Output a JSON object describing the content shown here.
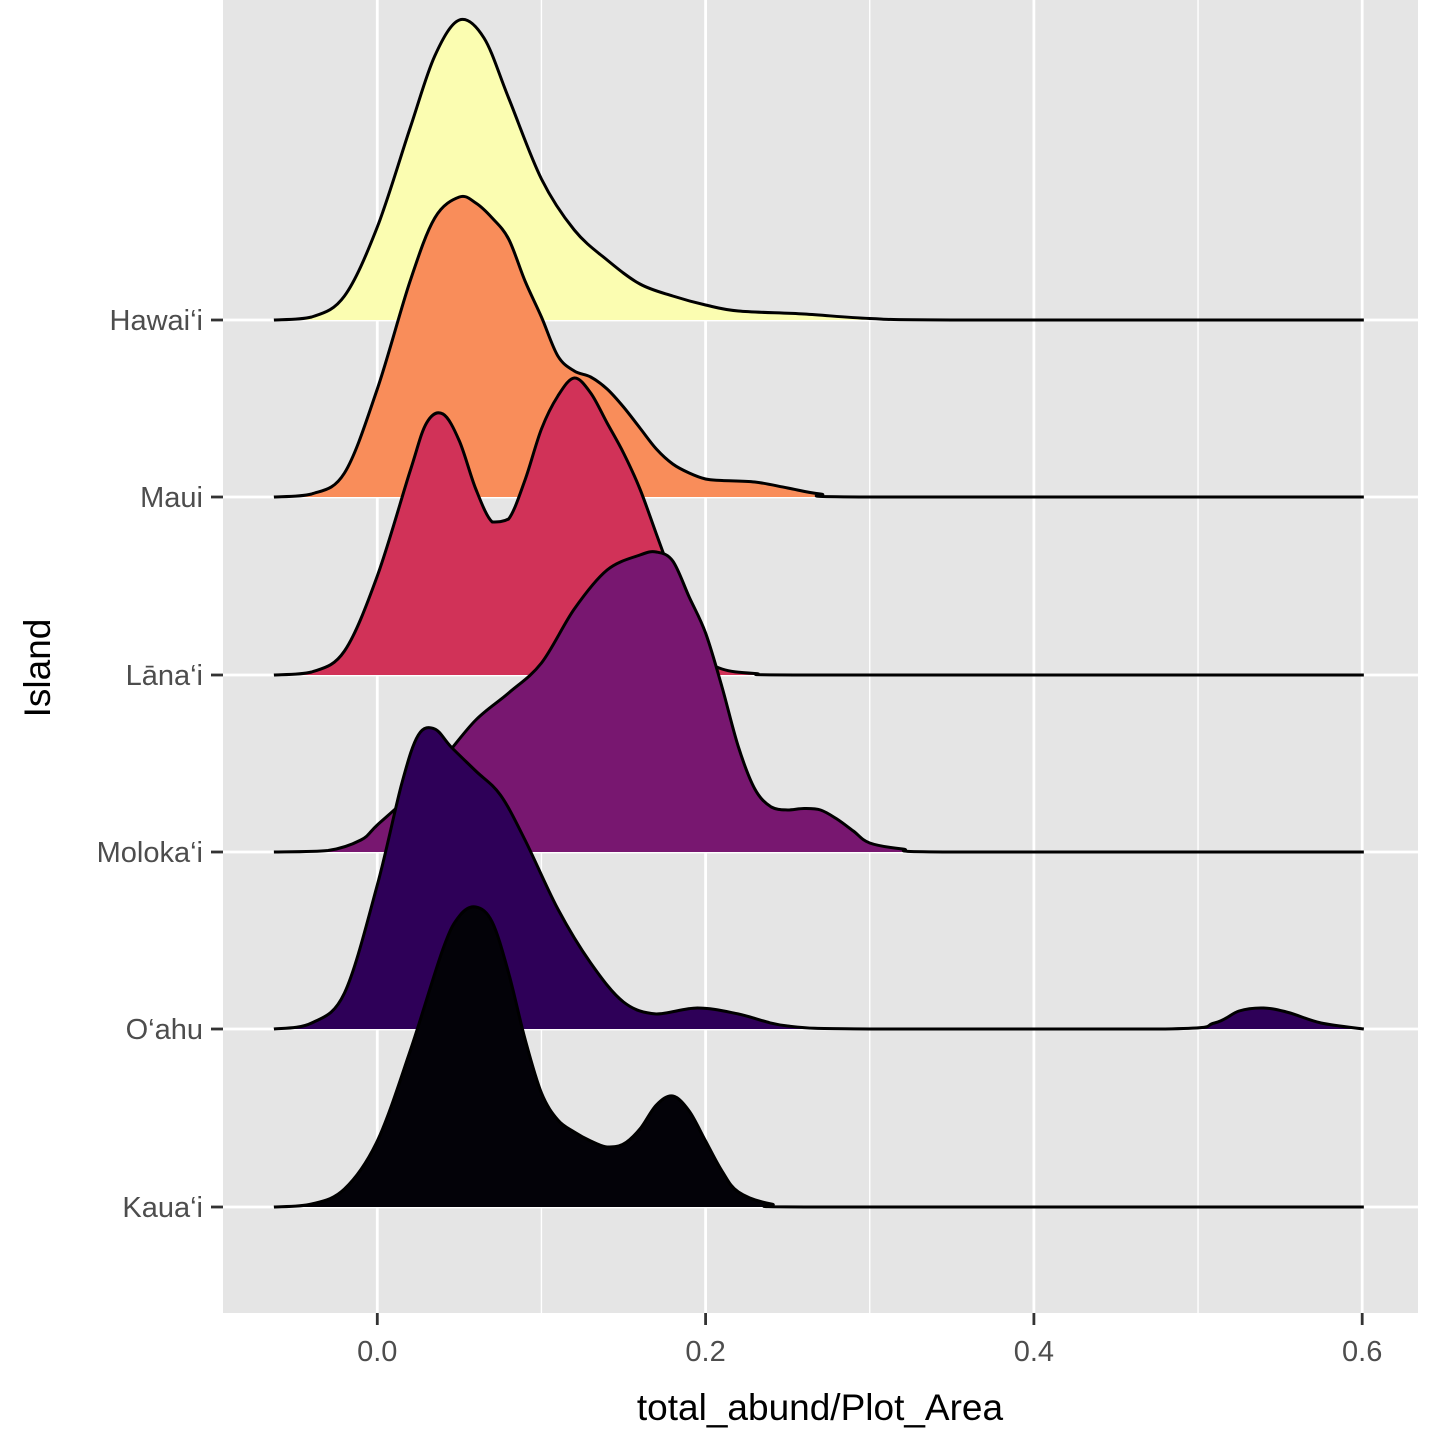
{
  "chart_data": {
    "type": "ridgeline",
    "xlabel": "total_abund/Plot_Area",
    "ylabel": "Island",
    "xlim": [
      -0.094,
      0.634
    ],
    "x_ticks": [
      0.0,
      0.2,
      0.4,
      0.6
    ],
    "x_tick_labels": [
      "0.0",
      "0.2",
      "0.4",
      "0.6"
    ],
    "x_range": [
      -0.063,
      0.601
    ],
    "grid": true,
    "background": "#e5e5e5",
    "series": [
      {
        "name": "Kaua‘i",
        "fill": "#030208",
        "points": [
          [
            -0.063,
            0
          ],
          [
            -0.04,
            0.01
          ],
          [
            -0.02,
            0.06
          ],
          [
            0.0,
            0.22
          ],
          [
            0.02,
            0.52
          ],
          [
            0.04,
            0.86
          ],
          [
            0.05,
            0.97
          ],
          [
            0.06,
            1.0
          ],
          [
            0.07,
            0.95
          ],
          [
            0.08,
            0.78
          ],
          [
            0.09,
            0.56
          ],
          [
            0.1,
            0.38
          ],
          [
            0.11,
            0.29
          ],
          [
            0.12,
            0.25
          ],
          [
            0.13,
            0.22
          ],
          [
            0.14,
            0.2
          ],
          [
            0.15,
            0.21
          ],
          [
            0.16,
            0.26
          ],
          [
            0.17,
            0.34
          ],
          [
            0.18,
            0.37
          ],
          [
            0.19,
            0.32
          ],
          [
            0.2,
            0.22
          ],
          [
            0.21,
            0.12
          ],
          [
            0.22,
            0.05
          ],
          [
            0.24,
            0.01
          ],
          [
            0.27,
            0
          ],
          [
            0.601,
            0
          ]
        ]
      },
      {
        "name": "O‘ahu",
        "fill": "#2e0058",
        "points": [
          [
            -0.063,
            0
          ],
          [
            -0.04,
            0.02
          ],
          [
            -0.02,
            0.12
          ],
          [
            0.0,
            0.48
          ],
          [
            0.015,
            0.82
          ],
          [
            0.025,
            0.98
          ],
          [
            0.035,
            1.0
          ],
          [
            0.045,
            0.94
          ],
          [
            0.06,
            0.86
          ],
          [
            0.075,
            0.78
          ],
          [
            0.09,
            0.63
          ],
          [
            0.11,
            0.4
          ],
          [
            0.13,
            0.22
          ],
          [
            0.15,
            0.09
          ],
          [
            0.17,
            0.05
          ],
          [
            0.195,
            0.07
          ],
          [
            0.22,
            0.05
          ],
          [
            0.25,
            0.01
          ],
          [
            0.3,
            0
          ],
          [
            0.48,
            0
          ],
          [
            0.51,
            0.02
          ],
          [
            0.525,
            0.06
          ],
          [
            0.54,
            0.07
          ],
          [
            0.555,
            0.055
          ],
          [
            0.575,
            0.02
          ],
          [
            0.601,
            0
          ]
        ]
      },
      {
        "name": "Moloka‘i",
        "fill": "#781770",
        "points": [
          [
            -0.063,
            0
          ],
          [
            -0.03,
            0.005
          ],
          [
            -0.01,
            0.04
          ],
          [
            0.0,
            0.09
          ],
          [
            0.02,
            0.19
          ],
          [
            0.04,
            0.31
          ],
          [
            0.06,
            0.44
          ],
          [
            0.08,
            0.53
          ],
          [
            0.1,
            0.63
          ],
          [
            0.12,
            0.81
          ],
          [
            0.14,
            0.94
          ],
          [
            0.16,
            0.99
          ],
          [
            0.17,
            1.0
          ],
          [
            0.18,
            0.97
          ],
          [
            0.19,
            0.85
          ],
          [
            0.2,
            0.73
          ],
          [
            0.21,
            0.55
          ],
          [
            0.22,
            0.35
          ],
          [
            0.23,
            0.21
          ],
          [
            0.24,
            0.15
          ],
          [
            0.25,
            0.14
          ],
          [
            0.26,
            0.145
          ],
          [
            0.27,
            0.14
          ],
          [
            0.28,
            0.11
          ],
          [
            0.29,
            0.07
          ],
          [
            0.3,
            0.03
          ],
          [
            0.32,
            0.01
          ],
          [
            0.35,
            0
          ],
          [
            0.601,
            0
          ]
        ]
      },
      {
        "name": "Lāna‘i",
        "fill": "#d13258",
        "points": [
          [
            -0.063,
            0
          ],
          [
            -0.04,
            0.01
          ],
          [
            -0.02,
            0.08
          ],
          [
            0.0,
            0.33
          ],
          [
            0.02,
            0.68
          ],
          [
            0.03,
            0.84
          ],
          [
            0.04,
            0.87
          ],
          [
            0.05,
            0.78
          ],
          [
            0.06,
            0.62
          ],
          [
            0.07,
            0.51
          ],
          [
            0.08,
            0.52
          ],
          [
            0.09,
            0.65
          ],
          [
            0.1,
            0.82
          ],
          [
            0.11,
            0.93
          ],
          [
            0.12,
            0.99
          ],
          [
            0.13,
            0.94
          ],
          [
            0.14,
            0.84
          ],
          [
            0.15,
            0.74
          ],
          [
            0.16,
            0.62
          ],
          [
            0.17,
            0.47
          ],
          [
            0.18,
            0.32
          ],
          [
            0.19,
            0.17
          ],
          [
            0.2,
            0.06
          ],
          [
            0.21,
            0.02
          ],
          [
            0.23,
            0.005
          ],
          [
            0.27,
            0
          ],
          [
            0.601,
            0
          ]
        ]
      },
      {
        "name": "Maui",
        "fill": "#f98d5a",
        "points": [
          [
            -0.063,
            0
          ],
          [
            -0.04,
            0.01
          ],
          [
            -0.02,
            0.08
          ],
          [
            0.0,
            0.36
          ],
          [
            0.02,
            0.72
          ],
          [
            0.035,
            0.93
          ],
          [
            0.05,
            1.0
          ],
          [
            0.06,
            0.98
          ],
          [
            0.07,
            0.93
          ],
          [
            0.08,
            0.86
          ],
          [
            0.09,
            0.72
          ],
          [
            0.1,
            0.6
          ],
          [
            0.11,
            0.47
          ],
          [
            0.12,
            0.42
          ],
          [
            0.13,
            0.4
          ],
          [
            0.14,
            0.36
          ],
          [
            0.15,
            0.3
          ],
          [
            0.16,
            0.23
          ],
          [
            0.17,
            0.16
          ],
          [
            0.18,
            0.11
          ],
          [
            0.19,
            0.08
          ],
          [
            0.2,
            0.06
          ],
          [
            0.21,
            0.055
          ],
          [
            0.23,
            0.05
          ],
          [
            0.25,
            0.03
          ],
          [
            0.27,
            0.01
          ],
          [
            0.3,
            0
          ],
          [
            0.601,
            0
          ]
        ]
      },
      {
        "name": "Hawai‘i",
        "fill": "#fbfdb1",
        "points": [
          [
            -0.063,
            0
          ],
          [
            -0.04,
            0.01
          ],
          [
            -0.02,
            0.08
          ],
          [
            0.0,
            0.31
          ],
          [
            0.02,
            0.64
          ],
          [
            0.035,
            0.88
          ],
          [
            0.05,
            1.0
          ],
          [
            0.065,
            0.94
          ],
          [
            0.08,
            0.74
          ],
          [
            0.1,
            0.47
          ],
          [
            0.12,
            0.3
          ],
          [
            0.14,
            0.2
          ],
          [
            0.16,
            0.12
          ],
          [
            0.18,
            0.08
          ],
          [
            0.2,
            0.05
          ],
          [
            0.22,
            0.03
          ],
          [
            0.26,
            0.02
          ],
          [
            0.3,
            0.005
          ],
          [
            0.35,
            0
          ],
          [
            0.601,
            0
          ]
        ]
      }
    ]
  }
}
